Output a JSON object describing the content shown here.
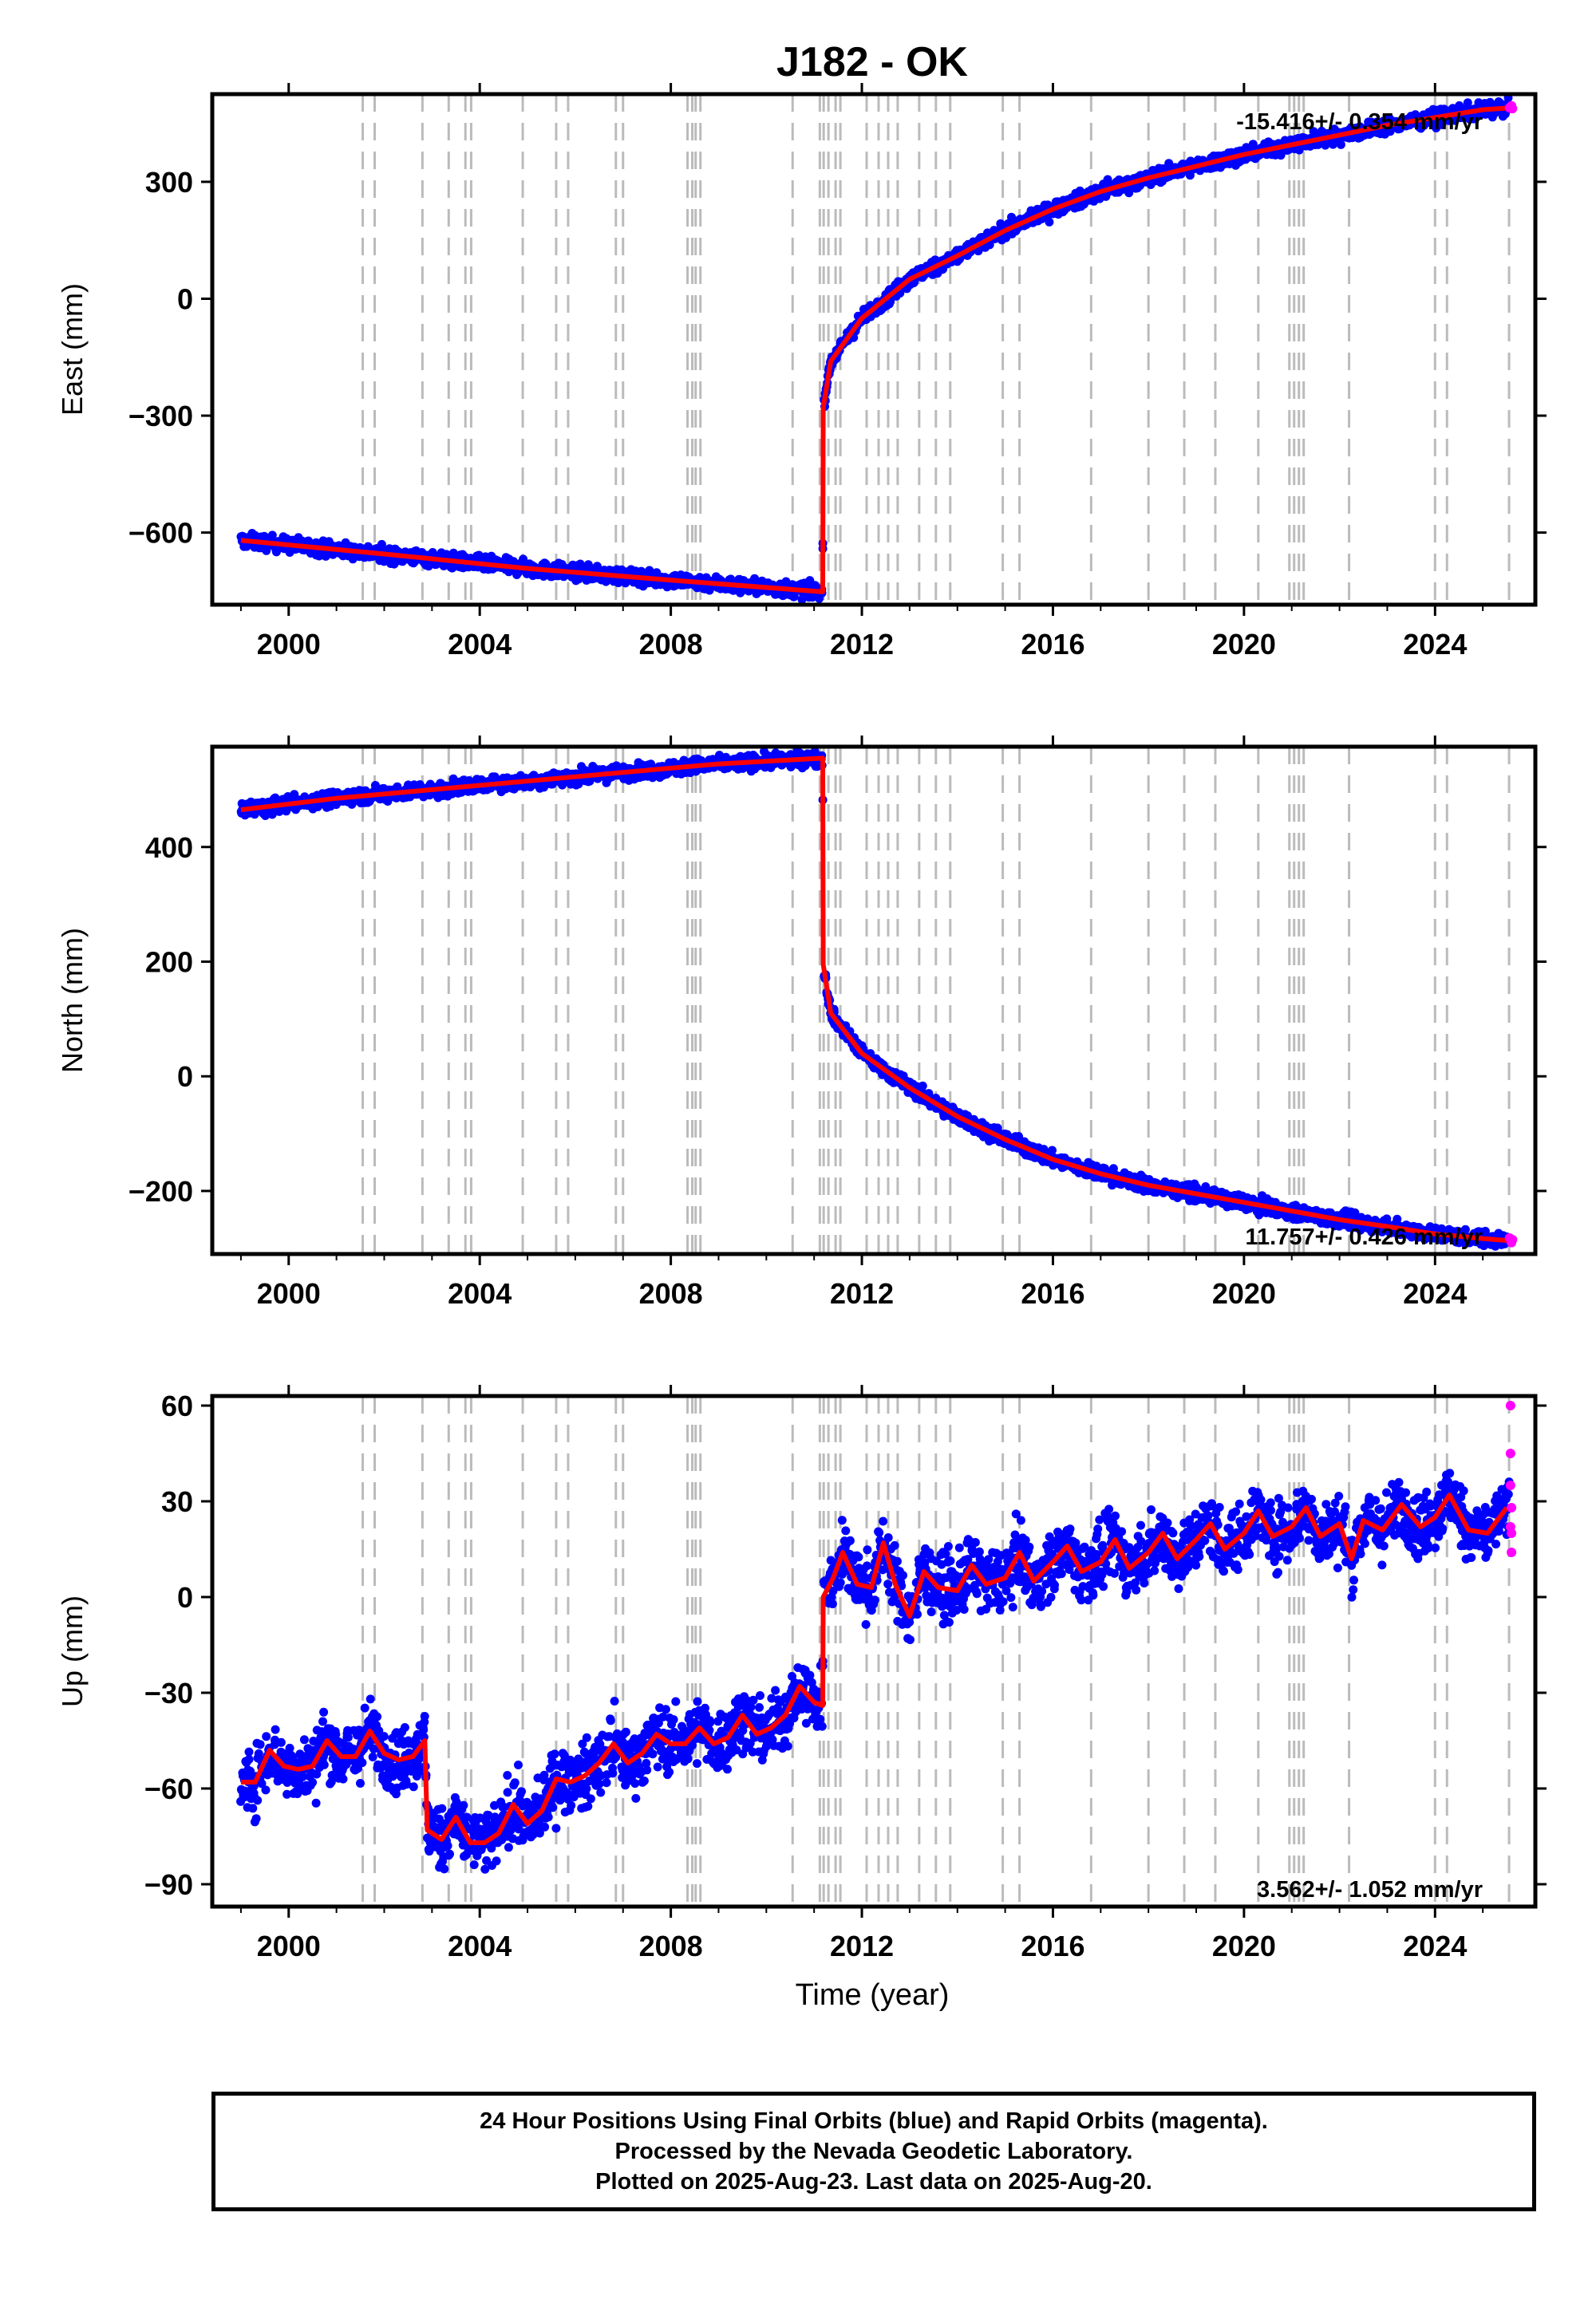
{
  "title": "J182 - OK",
  "colors": {
    "final_orbits": "#0000ff",
    "rapid_orbits": "#ff00ff",
    "model": "#ff0000",
    "events": "#bbbbbb",
    "frame": "#000000"
  },
  "footer": {
    "line1": "24 Hour Positions Using Final Orbits (blue) and Rapid Orbits (magenta).",
    "line2": "Processed by the Nevada Geodetic Laboratory.",
    "line3": "Plotted on 2025-Aug-23. Last data on 2025-Aug-20."
  },
  "chart_data": [
    {
      "type": "scatter",
      "ylabel": "East (mm)",
      "xlabel": "",
      "xlim": [
        1998.4,
        2026.1
      ],
      "ylim": [
        -785,
        525
      ],
      "xticks": [
        2000,
        2004,
        2008,
        2012,
        2016,
        2020,
        2024
      ],
      "yticks": [
        -600,
        -300,
        0,
        300
      ],
      "rate_label": "-15.416+/- 0.354 mm/yr",
      "rate_label_position": "top-right",
      "model_points": [
        [
          1999.0,
          -620
        ],
        [
          2002.0,
          -655
        ],
        [
          2005.0,
          -692
        ],
        [
          2008.0,
          -722
        ],
        [
          2011.18,
          -752
        ],
        [
          2011.19,
          -280
        ],
        [
          2011.35,
          -160
        ],
        [
          2012.0,
          -50
        ],
        [
          2013.0,
          50
        ],
        [
          2014.0,
          110
        ],
        [
          2015.0,
          175
        ],
        [
          2016.0,
          230
        ],
        [
          2017.0,
          275
        ],
        [
          2018.0,
          310
        ],
        [
          2019.0,
          340
        ],
        [
          2020.0,
          370
        ],
        [
          2021.0,
          395
        ],
        [
          2022.0,
          420
        ],
        [
          2023.0,
          445
        ],
        [
          2024.0,
          465
        ],
        [
          2025.0,
          485
        ],
        [
          2025.6,
          490
        ]
      ],
      "rapid_points": [
        [
          2025.56,
          490
        ],
        [
          2025.6,
          495
        ],
        [
          2025.62,
          488
        ]
      ]
    },
    {
      "type": "scatter",
      "ylabel": "North (mm)",
      "xlabel": "",
      "xlim": [
        1998.4,
        2026.1
      ],
      "ylim": [
        -310,
        575
      ],
      "xticks": [
        2000,
        2004,
        2008,
        2012,
        2016,
        2020,
        2024
      ],
      "yticks": [
        -200,
        0,
        200,
        400
      ],
      "rate_label": "11.757+/- 0.426 mm/yr",
      "rate_label_position": "bottom-right",
      "model_points": [
        [
          1999.0,
          465
        ],
        [
          2001.0,
          485
        ],
        [
          2003.0,
          500
        ],
        [
          2005.0,
          515
        ],
        [
          2007.0,
          530
        ],
        [
          2009.0,
          545
        ],
        [
          2011.18,
          555
        ],
        [
          2011.19,
          195
        ],
        [
          2011.35,
          110
        ],
        [
          2012.0,
          40
        ],
        [
          2013.0,
          -20
        ],
        [
          2014.0,
          -70
        ],
        [
          2015.0,
          -110
        ],
        [
          2016.0,
          -145
        ],
        [
          2017.0,
          -170
        ],
        [
          2018.0,
          -190
        ],
        [
          2019.0,
          -205
        ],
        [
          2020.0,
          -220
        ],
        [
          2021.0,
          -235
        ],
        [
          2022.0,
          -250
        ],
        [
          2023.0,
          -262
        ],
        [
          2024.0,
          -275
        ],
        [
          2025.0,
          -283
        ],
        [
          2025.6,
          -287
        ]
      ],
      "rapid_points": [
        [
          2025.56,
          -282
        ],
        [
          2025.6,
          -290
        ],
        [
          2025.62,
          -285
        ]
      ]
    },
    {
      "type": "scatter",
      "ylabel": "Up (mm)",
      "xlabel": "Time (year)",
      "xlim": [
        1998.4,
        2026.1
      ],
      "ylim": [
        -97,
        63
      ],
      "xticks": [
        2000,
        2004,
        2008,
        2012,
        2016,
        2020,
        2024
      ],
      "yticks": [
        -90,
        -60,
        -30,
        0,
        30,
        60
      ],
      "rate_label": "3.562+/- 1.052 mm/yr",
      "rate_label_position": "bottom-right",
      "model_points": [
        [
          1999.0,
          -58
        ],
        [
          1999.3,
          -58
        ],
        [
          1999.6,
          -48
        ],
        [
          1999.9,
          -53
        ],
        [
          2000.2,
          -54
        ],
        [
          2000.5,
          -53
        ],
        [
          2000.8,
          -45
        ],
        [
          2001.1,
          -50
        ],
        [
          2001.4,
          -50
        ],
        [
          2001.7,
          -42
        ],
        [
          2002.0,
          -49
        ],
        [
          2002.3,
          -51
        ],
        [
          2002.6,
          -50
        ],
        [
          2002.85,
          -45
        ],
        [
          2002.9,
          -73
        ],
        [
          2003.2,
          -76
        ],
        [
          2003.5,
          -69
        ],
        [
          2003.8,
          -77
        ],
        [
          2004.1,
          -77
        ],
        [
          2004.4,
          -74
        ],
        [
          2004.7,
          -65
        ],
        [
          2005.0,
          -71
        ],
        [
          2005.3,
          -67
        ],
        [
          2005.6,
          -57
        ],
        [
          2005.9,
          -58
        ],
        [
          2006.2,
          -56
        ],
        [
          2006.5,
          -52
        ],
        [
          2006.8,
          -46
        ],
        [
          2007.1,
          -52
        ],
        [
          2007.4,
          -49
        ],
        [
          2007.7,
          -43
        ],
        [
          2008.0,
          -46
        ],
        [
          2008.3,
          -46
        ],
        [
          2008.6,
          -41
        ],
        [
          2008.9,
          -46
        ],
        [
          2009.2,
          -44
        ],
        [
          2009.5,
          -37
        ],
        [
          2009.8,
          -43
        ],
        [
          2010.1,
          -41
        ],
        [
          2010.4,
          -37
        ],
        [
          2010.7,
          -28
        ],
        [
          2011.0,
          -33
        ],
        [
          2011.18,
          -34
        ],
        [
          2011.19,
          0
        ],
        [
          2011.4,
          6
        ],
        [
          2011.6,
          14
        ],
        [
          2011.9,
          4
        ],
        [
          2012.2,
          3
        ],
        [
          2012.45,
          17
        ],
        [
          2012.7,
          4
        ],
        [
          2013.0,
          -6
        ],
        [
          2013.3,
          8
        ],
        [
          2013.6,
          3
        ],
        [
          2014.0,
          2
        ],
        [
          2014.3,
          10
        ],
        [
          2014.6,
          4
        ],
        [
          2015.0,
          6
        ],
        [
          2015.3,
          14
        ],
        [
          2015.6,
          5
        ],
        [
          2016.0,
          11
        ],
        [
          2016.3,
          16
        ],
        [
          2016.6,
          8
        ],
        [
          2017.0,
          11
        ],
        [
          2017.3,
          18
        ],
        [
          2017.6,
          9
        ],
        [
          2018.0,
          14
        ],
        [
          2018.3,
          20
        ],
        [
          2018.6,
          12
        ],
        [
          2019.0,
          18
        ],
        [
          2019.3,
          23
        ],
        [
          2019.6,
          15
        ],
        [
          2020.0,
          20
        ],
        [
          2020.3,
          27
        ],
        [
          2020.6,
          19
        ],
        [
          2021.0,
          22
        ],
        [
          2021.3,
          28
        ],
        [
          2021.6,
          19
        ],
        [
          2022.0,
          23
        ],
        [
          2022.25,
          12
        ],
        [
          2022.5,
          24
        ],
        [
          2022.9,
          21
        ],
        [
          2023.3,
          29
        ],
        [
          2023.7,
          22
        ],
        [
          2024.0,
          25
        ],
        [
          2024.3,
          32
        ],
        [
          2024.7,
          21
        ],
        [
          2025.1,
          20
        ],
        [
          2025.5,
          28
        ]
      ],
      "rapid_points": [
        [
          2025.58,
          60
        ],
        [
          2025.58,
          45
        ],
        [
          2025.58,
          35
        ],
        [
          2025.6,
          28
        ],
        [
          2025.6,
          20
        ],
        [
          2025.6,
          14
        ],
        [
          2025.58,
          22
        ]
      ]
    }
  ],
  "event_years": [
    2001.55,
    2001.8,
    2002.8,
    2003.35,
    2003.7,
    2003.82,
    2004.9,
    2005.6,
    2005.85,
    2006.85,
    2007.0,
    2008.35,
    2008.45,
    2008.52,
    2008.62,
    2010.55,
    2011.12,
    2011.2,
    2011.3,
    2011.45,
    2011.55,
    2012.1,
    2012.35,
    2012.55,
    2012.75,
    2013.2,
    2013.55,
    2013.85,
    2014.95,
    2015.3,
    2016.8,
    2018.0,
    2018.75,
    2019.4,
    2020.3,
    2020.95,
    2021.05,
    2021.15,
    2021.25,
    2022.2,
    2024.0,
    2024.25,
    2025.55
  ]
}
